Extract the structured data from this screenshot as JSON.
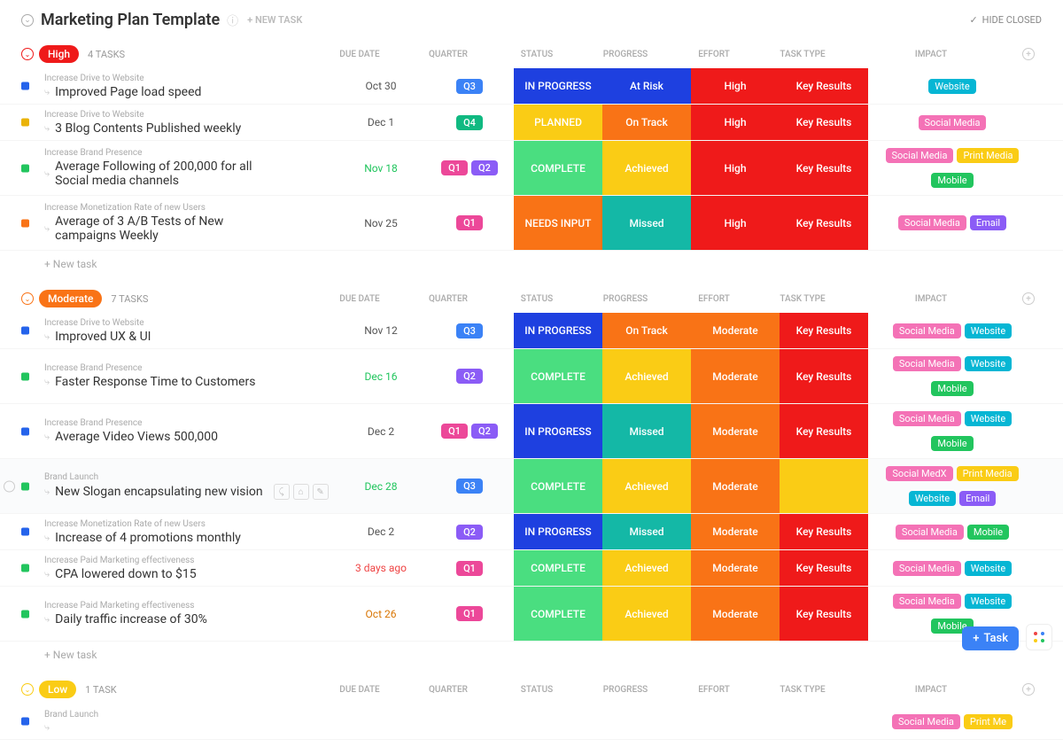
{
  "header": {
    "title": "Marketing Plan Template",
    "newTask": "+ NEW TASK",
    "hideClosed": "HIDE CLOSED"
  },
  "columns": [
    "DUE DATE",
    "QUARTER",
    "STATUS",
    "PROGRESS",
    "EFFORT",
    "TASK TYPE",
    "IMPACT"
  ],
  "newTaskRow": "+ New task",
  "colors": {
    "q1": "#ec4899",
    "q2": "#8b5cf6",
    "q3": "#3b82f6",
    "q4": "#10b981",
    "inprogress": "#1e40e0",
    "planned": "#facc15",
    "complete": "#4ade80",
    "needsinput": "#f97316",
    "atrisk": "#1e40e0",
    "ontrack": "#f97316",
    "achieved": "#facc15",
    "missed": "#14b8a6",
    "high_red": "#ef1a1a",
    "moderate_orange": "#f97316",
    "key": "#ef1a1a",
    "tag_social": "#f472b6",
    "tag_website": "#06b6d4",
    "tag_print": "#facc15",
    "tag_mobile": "#22c55e",
    "tag_email": "#8b5cf6",
    "due_green": "#22c55e",
    "due_red": "#ef4444",
    "due_amber": "#d97706",
    "sq_blue": "#2563eb",
    "sq_yellow": "#eab308",
    "sq_green": "#22c55e",
    "sq_orange": "#f97316"
  },
  "groups": [
    {
      "id": "high",
      "label": "High",
      "count": "4 TASKS",
      "pillColor": "#ef1a1a",
      "chevColor": "#ef1a1a",
      "tasks": [
        {
          "sq": "sq_blue",
          "cat": "Increase Drive to Website",
          "title": "Improved Page load speed",
          "due": "Oct 30",
          "dueColor": "#555",
          "quarters": [
            "Q3"
          ],
          "status": [
            "IN PROGRESS",
            "inprogress"
          ],
          "progress": [
            "At Risk",
            "atrisk"
          ],
          "effort": [
            "High",
            "high_red"
          ],
          "task": [
            "Key Results",
            "key"
          ],
          "tags": [
            [
              "Website",
              "tag_website"
            ]
          ]
        },
        {
          "sq": "sq_yellow",
          "cat": "Increase Drive to Website",
          "title": "3 Blog Contents Published weekly",
          "due": "Dec 1",
          "dueColor": "#555",
          "quarters": [
            "Q4"
          ],
          "status": [
            "PLANNED",
            "planned"
          ],
          "progress": [
            "On Track",
            "ontrack"
          ],
          "effort": [
            "High",
            "high_red"
          ],
          "task": [
            "Key Results",
            "key"
          ],
          "tags": [
            [
              "Social Media",
              "tag_social"
            ]
          ]
        },
        {
          "sq": "sq_green",
          "cat": "Increase Brand Presence",
          "title": "Average Following of 200,000 for all Social media channels",
          "due": "Nov 18",
          "dueColor": "due_green",
          "quarters": [
            "Q1",
            "Q2"
          ],
          "status": [
            "COMPLETE",
            "complete"
          ],
          "progress": [
            "Achieved",
            "achieved"
          ],
          "effort": [
            "High",
            "high_red"
          ],
          "task": [
            "Key Results",
            "key"
          ],
          "tags": [
            [
              "Social Media",
              "tag_social"
            ],
            [
              "Print Media",
              "tag_print"
            ],
            [
              "Mobile",
              "tag_mobile"
            ]
          ],
          "tall": true
        },
        {
          "sq": "sq_orange",
          "cat": "Increase Monetization Rate of new Users",
          "title": "Average of 3 A/B Tests of New campaigns Weekly",
          "due": "Nov 25",
          "dueColor": "#555",
          "quarters": [
            "Q1"
          ],
          "status": [
            "NEEDS INPUT",
            "needsinput"
          ],
          "progress": [
            "Missed",
            "missed"
          ],
          "effort": [
            "High",
            "high_red"
          ],
          "task": [
            "Key Results",
            "key"
          ],
          "tags": [
            [
              "Social Media",
              "tag_social"
            ],
            [
              "Email",
              "tag_email"
            ]
          ],
          "tall": true
        }
      ]
    },
    {
      "id": "moderate",
      "label": "Moderate",
      "count": "7 TASKS",
      "pillColor": "#f97316",
      "chevColor": "#f97316",
      "tasks": [
        {
          "sq": "sq_blue",
          "cat": "Increase Drive to Website",
          "title": "Improved UX & UI",
          "due": "Nov 12",
          "dueColor": "#555",
          "quarters": [
            "Q3"
          ],
          "status": [
            "IN PROGRESS",
            "inprogress"
          ],
          "progress": [
            "On Track",
            "ontrack"
          ],
          "effort": [
            "Moderate",
            "moderate_orange"
          ],
          "task": [
            "Key Results",
            "key"
          ],
          "tags": [
            [
              "Social Media",
              "tag_social"
            ],
            [
              "Website",
              "tag_website"
            ]
          ]
        },
        {
          "sq": "sq_green",
          "cat": "Increase Brand Presence",
          "title": "Faster Response Time to Customers",
          "due": "Dec 16",
          "dueColor": "due_green",
          "quarters": [
            "Q2"
          ],
          "status": [
            "COMPLETE",
            "complete"
          ],
          "progress": [
            "Achieved",
            "achieved"
          ],
          "effort": [
            "Moderate",
            "moderate_orange"
          ],
          "task": [
            "Key Results",
            "key"
          ],
          "tags": [
            [
              "Social Media",
              "tag_social"
            ],
            [
              "Website",
              "tag_website"
            ],
            [
              "Mobile",
              "tag_mobile"
            ]
          ],
          "tall": true
        },
        {
          "sq": "sq_blue",
          "cat": "Increase Brand Presence",
          "title": "Average Video Views 500,000",
          "due": "Dec 2",
          "dueColor": "#555",
          "quarters": [
            "Q1",
            "Q2"
          ],
          "status": [
            "IN PROGRESS",
            "inprogress"
          ],
          "progress": [
            "Missed",
            "missed"
          ],
          "effort": [
            "Moderate",
            "moderate_orange"
          ],
          "task": [
            "Key Results",
            "key"
          ],
          "tags": [
            [
              "Social Media",
              "tag_social"
            ],
            [
              "Website",
              "tag_website"
            ],
            [
              "Mobile",
              "tag_mobile"
            ]
          ],
          "tall": true
        },
        {
          "sq": "sq_green",
          "cat": "Brand Launch",
          "title": "New Slogan encapsulating new vision",
          "due": "Dec 28",
          "dueColor": "due_green",
          "quarters": [
            "Q3"
          ],
          "status": [
            "COMPLETE",
            "complete"
          ],
          "progress": [
            "Achieved",
            "achieved"
          ],
          "effort": [
            "Moderate",
            "moderate_orange"
          ],
          "task": [
            "",
            "planned"
          ],
          "tags": [
            [
              "Social MedX",
              "tag_social"
            ],
            [
              "Print Media",
              "tag_print"
            ],
            [
              "Website",
              "tag_website"
            ],
            [
              "Email",
              "tag_email"
            ]
          ],
          "hover": true,
          "tall": true
        },
        {
          "sq": "sq_blue",
          "cat": "Increase Monetization Rate of new Users",
          "title": "Increase of 4 promotions monthly",
          "due": "Dec 2",
          "dueColor": "#555",
          "quarters": [
            "Q2"
          ],
          "status": [
            "IN PROGRESS",
            "inprogress"
          ],
          "progress": [
            "Missed",
            "missed"
          ],
          "effort": [
            "Moderate",
            "moderate_orange"
          ],
          "task": [
            "Key Results",
            "key"
          ],
          "tags": [
            [
              "Social Media",
              "tag_social"
            ],
            [
              "Mobile",
              "tag_mobile"
            ]
          ]
        },
        {
          "sq": "sq_green",
          "cat": "Increase Paid Marketing effectiveness",
          "title": "CPA lowered down to $15",
          "due": "3 days ago",
          "dueColor": "due_red",
          "quarters": [
            "Q1"
          ],
          "status": [
            "COMPLETE",
            "complete"
          ],
          "progress": [
            "Achieved",
            "achieved"
          ],
          "effort": [
            "Moderate",
            "moderate_orange"
          ],
          "task": [
            "Key Results",
            "key"
          ],
          "tags": [
            [
              "Social Media",
              "tag_social"
            ],
            [
              "Website",
              "tag_website"
            ]
          ]
        },
        {
          "sq": "sq_green",
          "cat": "Increase Paid Marketing effectiveness",
          "title": "Daily traffic increase of 30%",
          "due": "Oct 26",
          "dueColor": "due_amber",
          "quarters": [
            "Q1"
          ],
          "status": [
            "COMPLETE",
            "complete"
          ],
          "progress": [
            "Achieved",
            "achieved"
          ],
          "effort": [
            "Moderate",
            "moderate_orange"
          ],
          "task": [
            "Key Results",
            "key"
          ],
          "tags": [
            [
              "Social Media",
              "tag_social"
            ],
            [
              "Website",
              "tag_website"
            ],
            [
              "Mobile",
              "tag_mobile"
            ]
          ],
          "tall": true
        }
      ]
    },
    {
      "id": "low",
      "label": "Low",
      "count": "1 TASK",
      "pillColor": "#facc15",
      "chevColor": "#facc15",
      "tasks": [
        {
          "sq": "sq_blue",
          "cat": "Brand Launch",
          "title": "",
          "due": "",
          "dueColor": "#555",
          "quarters": [],
          "status": [
            "",
            ""
          ],
          "progress": [
            "",
            ""
          ],
          "effort": [
            "",
            ""
          ],
          "task": [
            "",
            ""
          ],
          "tags": [
            [
              "Social Media",
              "tag_social"
            ],
            [
              "Print Me",
              "tag_print"
            ]
          ],
          "cutoff": true
        }
      ],
      "noNewRow": true
    }
  ],
  "fab": {
    "label": "Task"
  }
}
